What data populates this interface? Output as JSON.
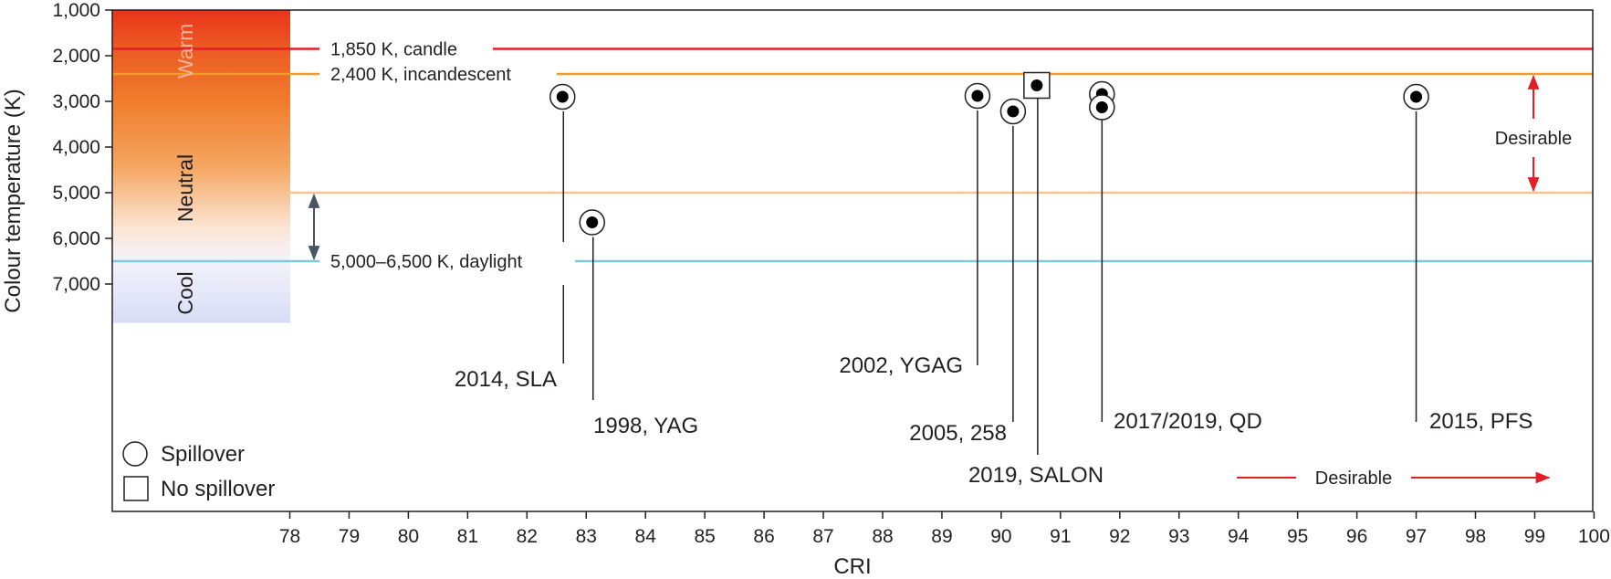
{
  "chart_data": {
    "type": "scatter",
    "xlabel": "CRI",
    "ylabel": "Colour temperature (K)",
    "xlim": [
      75,
      100
    ],
    "ylim": [
      1000,
      12000
    ],
    "y_inverted": true,
    "x_ticks": [
      78,
      79,
      80,
      81,
      82,
      83,
      84,
      85,
      86,
      87,
      88,
      89,
      90,
      91,
      92,
      93,
      94,
      95,
      96,
      97,
      98,
      99,
      100
    ],
    "x_tick_labels": [
      "78",
      "79",
      "80",
      "81",
      "82",
      "83",
      "84",
      "85",
      "86",
      "87",
      "88",
      "89",
      "90",
      "91",
      "92",
      "93",
      "94",
      "95",
      "96",
      "97",
      "98",
      "99",
      "100"
    ],
    "y_ticks": [
      1000,
      2000,
      3000,
      4000,
      5000,
      6000,
      7000
    ],
    "y_tick_labels": [
      "1,000",
      "2,000",
      "3,000",
      "4,000",
      "5,000",
      "6,000",
      "7,000"
    ],
    "bands": [
      {
        "label": "Warm",
        "y_from": 1000,
        "y_to": 3300,
        "color": "#e8431a"
      },
      {
        "label": "Neutral",
        "y_from": 3300,
        "y_to": 6500,
        "color": "#f5a55c"
      },
      {
        "label": "Cool",
        "y_from": 6500,
        "y_to": 7850,
        "color": "#dfe3f8"
      }
    ],
    "reference_lines": [
      {
        "y": 1850,
        "label": "1,850 K, candle",
        "color": "#e31e24"
      },
      {
        "y": 2400,
        "label": "2,400 K, incandescent",
        "color": "#f39a2c"
      },
      {
        "y": 5000,
        "label": "",
        "color": "#f7c28e"
      },
      {
        "y": 6500,
        "label": "5,000–6,500 K, daylight",
        "color": "#7fcad8"
      }
    ],
    "points": [
      {
        "x": 82.6,
        "y": 2900,
        "label": "2014, SLA",
        "marker": "circle"
      },
      {
        "x": 83.1,
        "y": 5650,
        "label": "1998, YAG",
        "marker": "circle"
      },
      {
        "x": 89.6,
        "y": 2880,
        "label": "2002, YGAG",
        "marker": "circle"
      },
      {
        "x": 90.2,
        "y": 3220,
        "label": "2005, 258",
        "marker": "circle"
      },
      {
        "x": 90.6,
        "y": 2650,
        "label": "2019, SALON",
        "marker": "square"
      },
      {
        "x": 91.7,
        "y": 2840,
        "label": "2017/2019, QD",
        "marker": "circle"
      },
      {
        "x": 91.7,
        "y": 3130,
        "label": "",
        "marker": "circle"
      },
      {
        "x": 97.0,
        "y": 2900,
        "label": "2015, PFS",
        "marker": "circle"
      }
    ],
    "legend": [
      {
        "marker": "circle",
        "label": "Spillover"
      },
      {
        "marker": "square",
        "label": "No spillover"
      }
    ],
    "desirable_label": "Desirable",
    "grid": false,
    "legend_position": "bottom-left"
  }
}
